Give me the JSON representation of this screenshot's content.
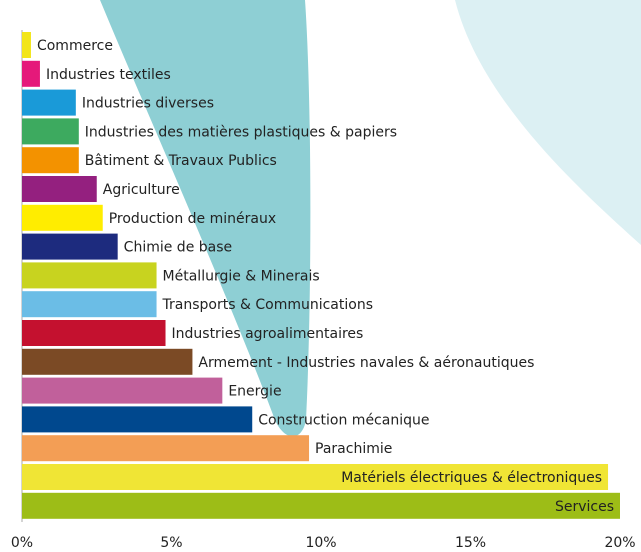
{
  "chart_data": {
    "type": "barh",
    "categories": [
      "Commerce",
      "Industries textiles",
      "Industries diverses",
      "Industries des matières plastiques & papiers",
      "Bâtiment & Travaux Publics",
      "Agriculture",
      "Production de minéraux",
      "Chimie de base",
      "Métallurgie & Minerais",
      "Transports & Communications",
      "Industries agroalimentaires",
      "Armement - Industries navales & aéronautiques",
      "Energie",
      "Construction mécanique",
      "Parachimie",
      "Matériels électriques & électroniques",
      "Services"
    ],
    "values": [
      0.3,
      0.6,
      1.8,
      1.9,
      1.9,
      2.5,
      2.7,
      3.2,
      4.5,
      4.5,
      4.8,
      5.7,
      6.7,
      7.7,
      9.6,
      19.6,
      20.0
    ],
    "colors": [
      "#f2e51a",
      "#e5197a",
      "#1a9ad8",
      "#3daa5f",
      "#f39200",
      "#94207f",
      "#ffed00",
      "#1d2b7e",
      "#c8d31f",
      "#6bbde6",
      "#c4112f",
      "#7b4a25",
      "#c1609b",
      "#00488e",
      "#f39e55",
      "#f0e535",
      "#9dbd17"
    ],
    "xlim": [
      0,
      20
    ],
    "xticks": [
      {
        "value": 0,
        "label": "0%"
      },
      {
        "value": 5,
        "label": "5%"
      },
      {
        "value": 10,
        "label": "10%"
      },
      {
        "value": 15,
        "label": "15%"
      },
      {
        "value": 20,
        "label": "20%"
      }
    ]
  }
}
